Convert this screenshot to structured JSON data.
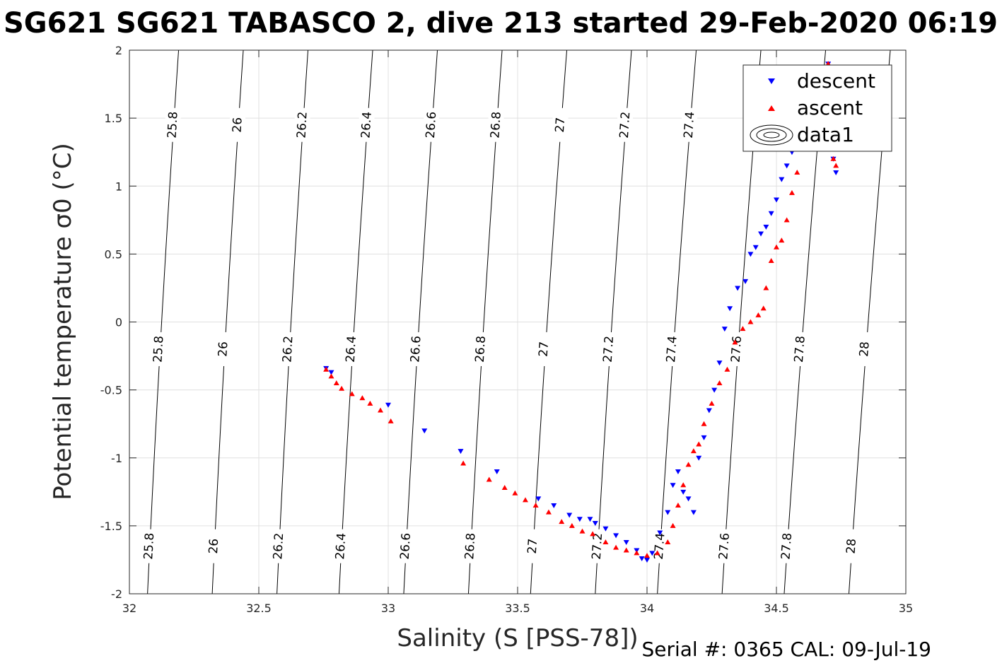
{
  "chart_data": {
    "type": "scatter",
    "title": "SG621 SG621 TABASCO 2, dive 213 started 29-Feb-2020 06:19",
    "xlabel": "Salinity (S [PSS-78])",
    "ylabel": "Potential temperature σ0 (°C)",
    "xlim": [
      32,
      35
    ],
    "ylim": [
      -2,
      2
    ],
    "xticks": [
      32,
      32.5,
      33,
      33.5,
      34,
      34.5,
      35
    ],
    "yticks": [
      -2,
      -1.5,
      -1,
      -0.5,
      0,
      0.5,
      1,
      1.5,
      2
    ],
    "xtick_labels": [
      "32",
      "32.5",
      "33",
      "33.5",
      "34",
      "34.5",
      "35"
    ],
    "ytick_labels": [
      "-2",
      "-1.5",
      "-1",
      "-0.5",
      "0",
      "0.5",
      "1",
      "1.5",
      "2"
    ],
    "grid": true,
    "legend_position": "top-right",
    "legend": [
      "descent",
      "ascent",
      "data1"
    ],
    "footer": "Serial #: 0365  CAL: 09-Jul-19",
    "colors": {
      "descent": "#0000ff",
      "ascent": "#ff0000",
      "contour": "#000000",
      "grid": "#e0e0e0"
    },
    "contours": [
      {
        "level": 25.8,
        "label": "25.8",
        "x_at_ymin": 32.07,
        "x_at_ymax": 32.19
      },
      {
        "level": 26,
        "label": "26",
        "x_at_ymin": 32.32,
        "x_at_ymax": 32.44
      },
      {
        "level": 26.2,
        "label": "26.2",
        "x_at_ymin": 32.57,
        "x_at_ymax": 32.69
      },
      {
        "level": 26.4,
        "label": "26.4",
        "x_at_ymin": 32.81,
        "x_at_ymax": 32.94
      },
      {
        "level": 26.6,
        "label": "26.6",
        "x_at_ymin": 33.06,
        "x_at_ymax": 33.19
      },
      {
        "level": 26.8,
        "label": "26.8",
        "x_at_ymin": 33.31,
        "x_at_ymax": 33.44
      },
      {
        "level": 27,
        "label": "27",
        "x_at_ymin": 33.55,
        "x_at_ymax": 33.69
      },
      {
        "level": 27.2,
        "label": "27.2",
        "x_at_ymin": 33.8,
        "x_at_ymax": 33.94
      },
      {
        "level": 27.4,
        "label": "27.4",
        "x_at_ymin": 34.04,
        "x_at_ymax": 34.19
      },
      {
        "level": 27.6,
        "label": "27.6",
        "x_at_ymin": 34.29,
        "x_at_ymax": 34.44
      },
      {
        "level": 27.8,
        "label": "27.8",
        "x_at_ymin": 34.53,
        "x_at_ymax": 34.69
      },
      {
        "level": 28,
        "label": "28",
        "x_at_ymin": 34.78,
        "x_at_ymax": 34.94
      }
    ],
    "contour_label_rows_y": [
      1.45,
      -0.2,
      -1.65
    ],
    "series": [
      {
        "name": "descent",
        "marker": "triangle-down",
        "x": [
          32.76,
          32.78,
          33.0,
          33.14,
          33.28,
          33.42,
          33.58,
          33.64,
          33.7,
          33.74,
          33.78,
          33.8,
          33.84,
          33.88,
          33.92,
          33.96,
          33.98,
          34.0,
          34.02,
          34.05,
          34.08,
          34.1,
          34.12,
          34.14,
          34.16,
          34.18,
          34.2,
          34.22,
          34.24,
          34.26,
          34.28,
          34.3,
          34.32,
          34.35,
          34.38,
          34.4,
          34.42,
          34.44,
          34.46,
          34.48,
          34.5,
          34.52,
          34.54,
          34.56,
          34.58,
          34.62,
          34.66,
          34.7,
          34.72,
          34.73
        ],
        "y": [
          -0.34,
          -0.37,
          -0.61,
          -0.8,
          -0.95,
          -1.1,
          -1.3,
          -1.35,
          -1.42,
          -1.45,
          -1.45,
          -1.48,
          -1.52,
          -1.57,
          -1.62,
          -1.68,
          -1.74,
          -1.75,
          -1.7,
          -1.55,
          -1.4,
          -1.2,
          -1.1,
          -1.25,
          -1.3,
          -1.4,
          -1.0,
          -0.85,
          -0.65,
          -0.5,
          -0.3,
          -0.05,
          0.1,
          0.25,
          0.3,
          0.5,
          0.55,
          0.65,
          0.7,
          0.8,
          0.9,
          1.05,
          1.15,
          1.25,
          1.4,
          1.6,
          1.8,
          1.9,
          1.2,
          1.1
        ]
      },
      {
        "name": "ascent",
        "marker": "triangle-up",
        "x": [
          32.76,
          32.78,
          32.8,
          32.82,
          32.86,
          32.9,
          32.93,
          32.97,
          33.01,
          33.29,
          33.39,
          33.45,
          33.49,
          33.53,
          33.57,
          33.62,
          33.67,
          33.71,
          33.75,
          33.79,
          33.84,
          33.88,
          33.92,
          33.96,
          34.0,
          34.04,
          34.08,
          34.1,
          34.12,
          34.14,
          34.16,
          34.18,
          34.2,
          34.22,
          34.25,
          34.28,
          34.31,
          34.34,
          34.37,
          34.4,
          34.43,
          34.45,
          34.46,
          34.48,
          34.5,
          34.52,
          34.54,
          34.56,
          34.58,
          34.62,
          34.66,
          34.68,
          34.7,
          34.72,
          34.73
        ],
        "y": [
          -0.35,
          -0.4,
          -0.45,
          -0.49,
          -0.53,
          -0.56,
          -0.6,
          -0.65,
          -0.73,
          -1.04,
          -1.16,
          -1.22,
          -1.26,
          -1.31,
          -1.35,
          -1.4,
          -1.47,
          -1.5,
          -1.54,
          -1.56,
          -1.62,
          -1.66,
          -1.68,
          -1.7,
          -1.72,
          -1.7,
          -1.62,
          -1.5,
          -1.35,
          -1.2,
          -1.05,
          -0.95,
          -0.9,
          -0.75,
          -0.6,
          -0.45,
          -0.35,
          -0.15,
          -0.05,
          0.0,
          0.05,
          0.1,
          0.25,
          0.45,
          0.55,
          0.6,
          0.75,
          0.95,
          1.1,
          1.3,
          1.6,
          1.8,
          1.9,
          1.2,
          1.15
        ]
      }
    ]
  }
}
